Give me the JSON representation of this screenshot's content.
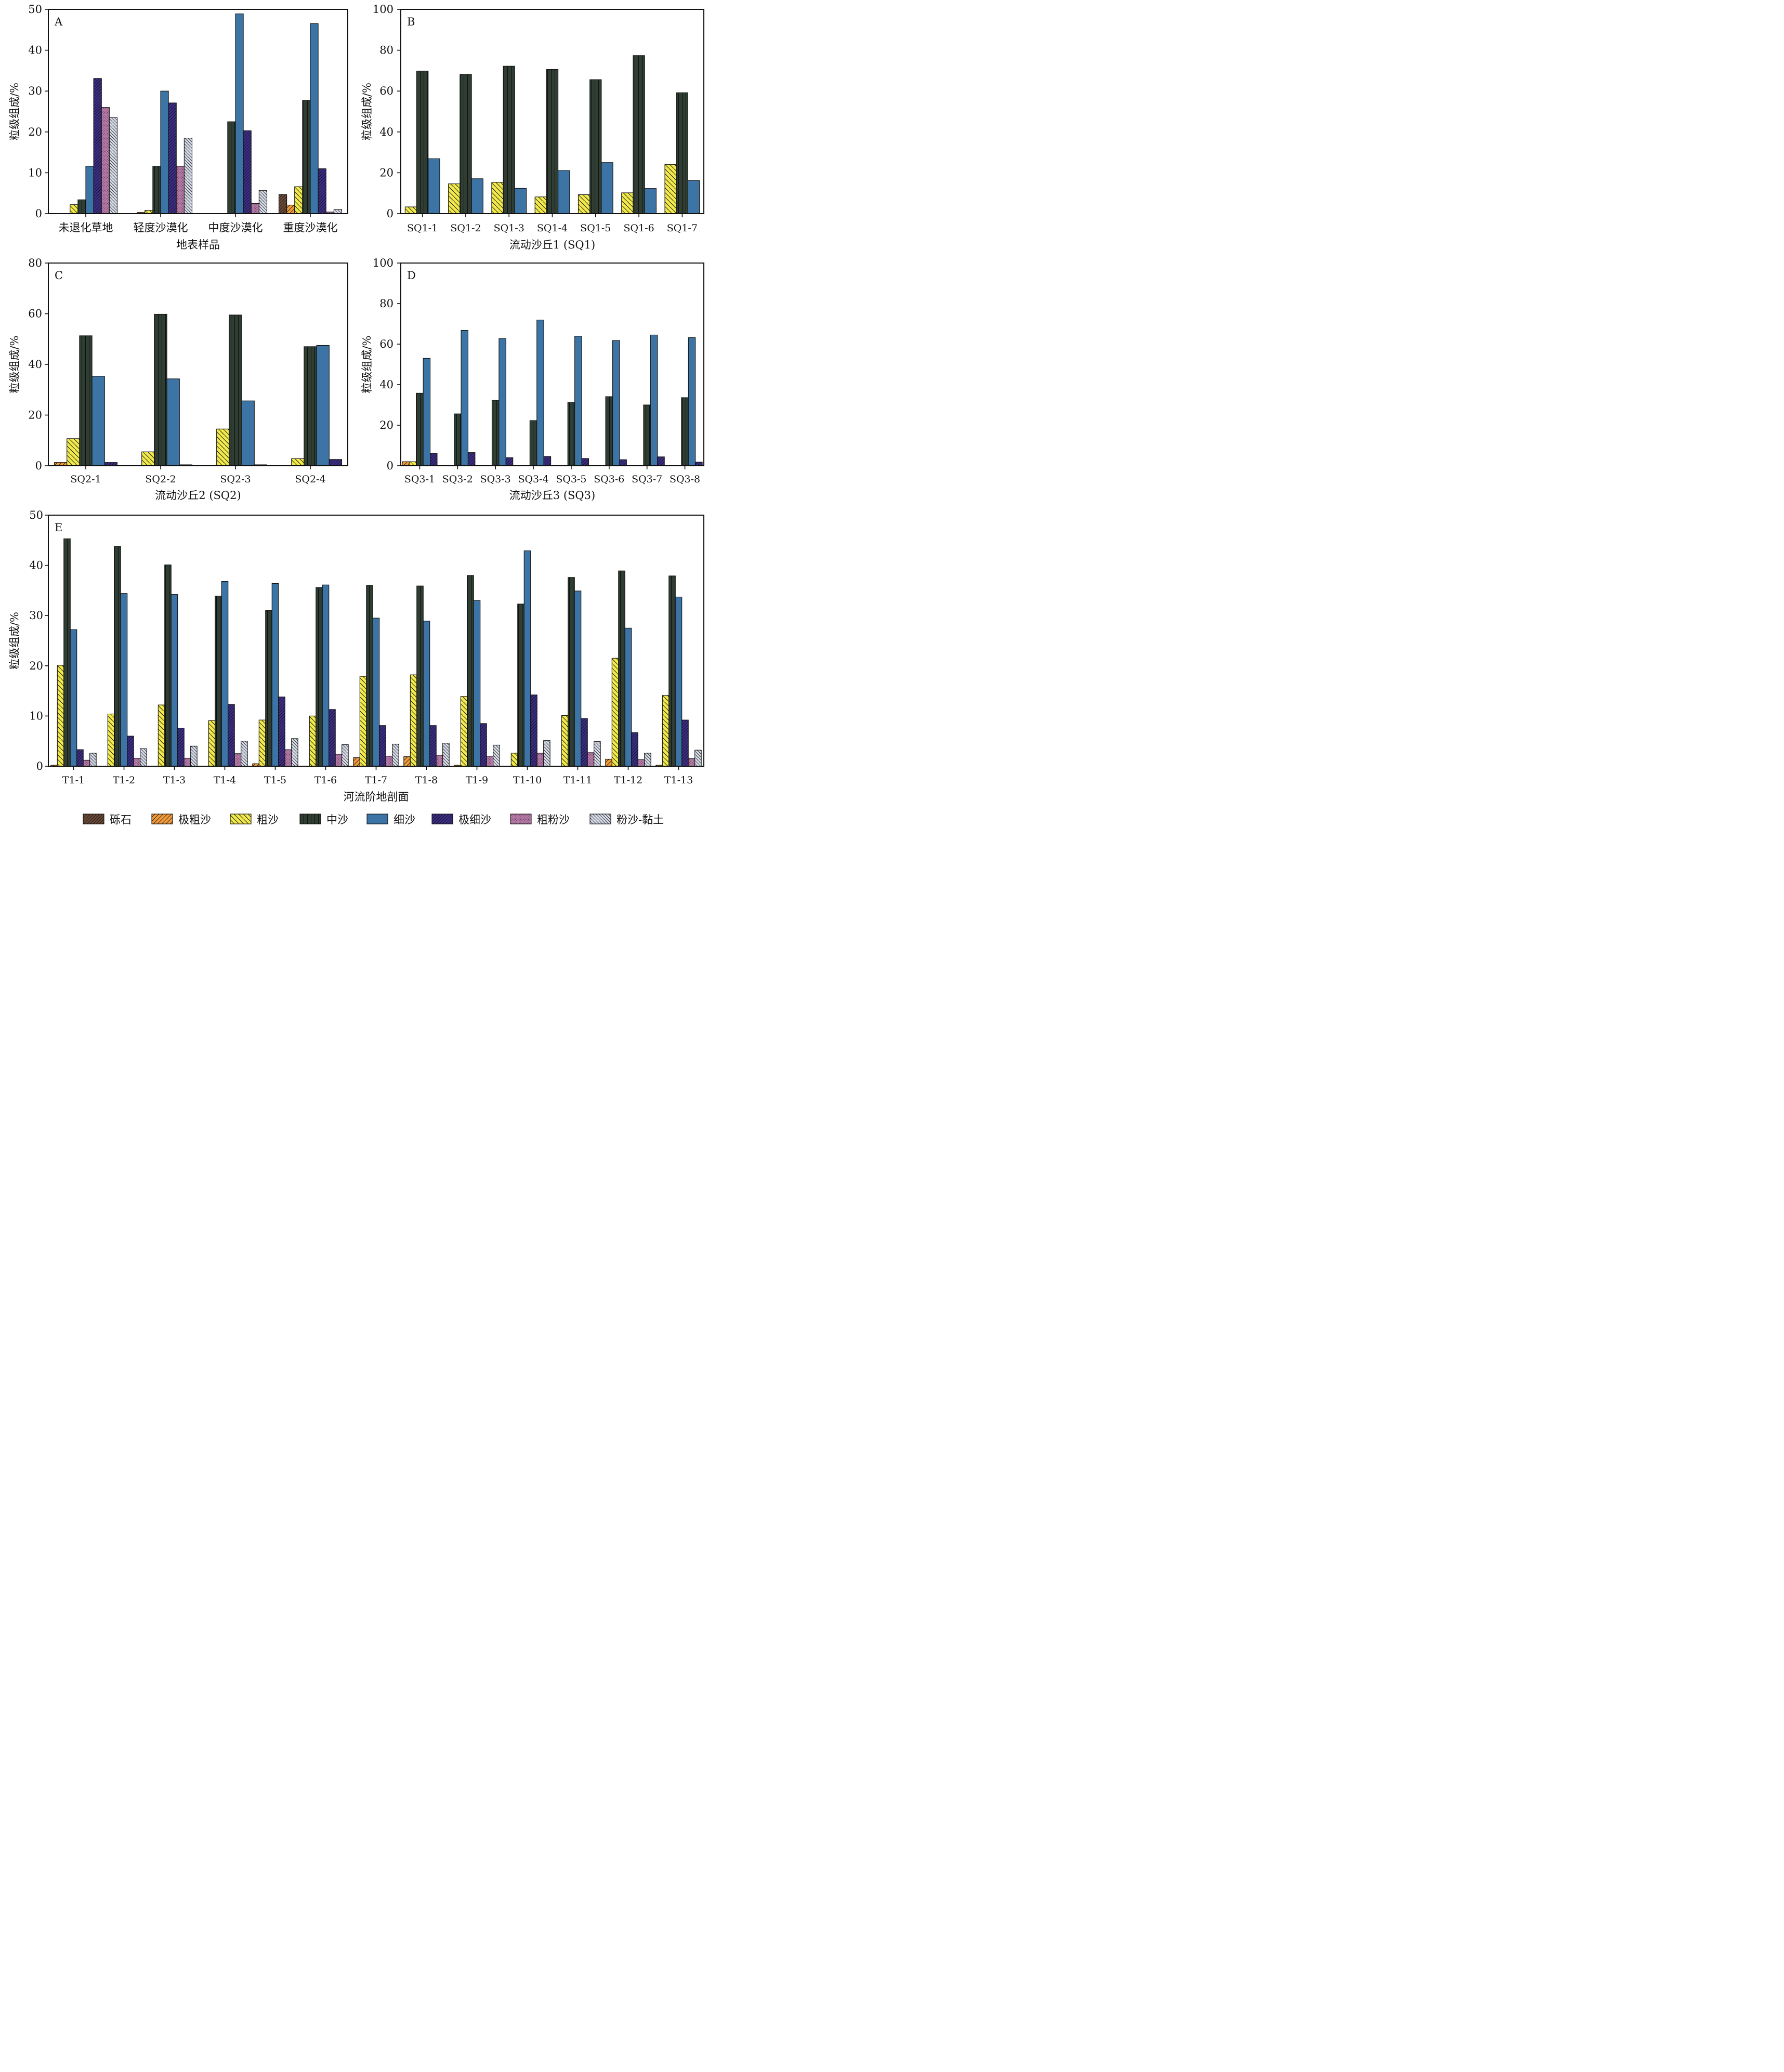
{
  "categories_legend": [
    "砾石",
    "极粗沙",
    "粗沙",
    "中沙",
    "细沙",
    "极细沙",
    "粗粉沙",
    "粉沙-黏土"
  ],
  "class_colors": [
    "#6b4a36",
    "#f29a3a",
    "#f2ea4a",
    "#2f3d33",
    "#3d74a6",
    "#3d2f80",
    "#b47aa6",
    "#d6dbe8"
  ],
  "chart_data": [
    {
      "panel": "A",
      "type": "bar",
      "ylabel": "粒级组成/%",
      "xlabel": "地表样品",
      "ylim": [
        0,
        50
      ],
      "yticks": [
        0,
        10,
        20,
        30,
        40,
        50
      ],
      "categories": [
        "未退化草地",
        "轻度沙漠化",
        "中度沙漠化",
        "重度沙漠化"
      ],
      "series": [
        {
          "name": "砾石",
          "values": [
            0,
            0,
            0,
            4.7
          ]
        },
        {
          "name": "极粗沙",
          "values": [
            0,
            0.3,
            0,
            2.1
          ]
        },
        {
          "name": "粗沙",
          "values": [
            2.2,
            0.8,
            0,
            6.6
          ]
        },
        {
          "name": "中沙",
          "values": [
            3.4,
            11.6,
            22.5,
            27.7
          ]
        },
        {
          "name": "细沙",
          "values": [
            11.6,
            30.0,
            48.9,
            46.5
          ]
        },
        {
          "name": "极细沙",
          "values": [
            33.1,
            27.1,
            20.3,
            11.0
          ]
        },
        {
          "name": "粗粉沙",
          "values": [
            26.0,
            11.6,
            2.5,
            0.4
          ]
        },
        {
          "name": "粉沙-黏土",
          "values": [
            23.5,
            18.5,
            5.7,
            1.0
          ]
        }
      ]
    },
    {
      "panel": "B",
      "type": "bar",
      "ylabel": "粒级组成/%",
      "xlabel": "流动沙丘1 (SQ1)",
      "ylim": [
        0,
        100
      ],
      "yticks": [
        0,
        20,
        40,
        60,
        80,
        100
      ],
      "categories": [
        "SQ1-1",
        "SQ1-2",
        "SQ1-3",
        "SQ1-4",
        "SQ1-5",
        "SQ1-6",
        "SQ1-7"
      ],
      "series": [
        {
          "name": "砾石",
          "values": [
            0,
            0,
            0,
            0,
            0,
            0,
            0
          ]
        },
        {
          "name": "极粗沙",
          "values": [
            0,
            0,
            0,
            0,
            0,
            0,
            0
          ]
        },
        {
          "name": "粗沙",
          "values": [
            3.3,
            14.6,
            15.3,
            8.2,
            9.3,
            10.2,
            24.1
          ]
        },
        {
          "name": "中沙",
          "values": [
            69.8,
            68.2,
            72.2,
            70.6,
            65.6,
            77.4,
            59.2
          ]
        },
        {
          "name": "细沙",
          "values": [
            26.9,
            17.1,
            12.4,
            21.1,
            25.0,
            12.3,
            16.2
          ]
        },
        {
          "name": "极细沙",
          "values": [
            0,
            0,
            0,
            0,
            0,
            0,
            0
          ]
        },
        {
          "name": "粗粉沙",
          "values": [
            0,
            0,
            0,
            0,
            0,
            0,
            0
          ]
        },
        {
          "name": "粉沙-黏土",
          "values": [
            0,
            0,
            0,
            0,
            0,
            0,
            0
          ]
        }
      ]
    },
    {
      "panel": "C",
      "type": "bar",
      "ylabel": "粒级组成/%",
      "xlabel": "流动沙丘2 (SQ2)",
      "ylim": [
        0,
        80
      ],
      "yticks": [
        0,
        20,
        40,
        60,
        80
      ],
      "categories": [
        "SQ2-1",
        "SQ2-2",
        "SQ2-3",
        "SQ2-4"
      ],
      "series": [
        {
          "name": "砾石",
          "values": [
            0,
            0,
            0,
            0
          ]
        },
        {
          "name": "极粗沙",
          "values": [
            1.3,
            0,
            0,
            0
          ]
        },
        {
          "name": "粗沙",
          "values": [
            10.7,
            5.5,
            14.5,
            2.8
          ]
        },
        {
          "name": "中沙",
          "values": [
            51.3,
            59.8,
            59.5,
            47.0
          ]
        },
        {
          "name": "细沙",
          "values": [
            35.3,
            34.3,
            25.6,
            47.5
          ]
        },
        {
          "name": "极细沙",
          "values": [
            1.3,
            0.4,
            0.4,
            2.5
          ]
        },
        {
          "name": "粗粉沙",
          "values": [
            0,
            0,
            0,
            0
          ]
        },
        {
          "name": "粉沙-黏土",
          "values": [
            0,
            0,
            0,
            0
          ]
        }
      ]
    },
    {
      "panel": "D",
      "type": "bar",
      "ylabel": "粒级组成/%",
      "xlabel": "流动沙丘3 (SQ3)",
      "ylim": [
        0,
        100
      ],
      "yticks": [
        0,
        20,
        40,
        60,
        80,
        100
      ],
      "categories": [
        "SQ3-1",
        "SQ3-2",
        "SQ3-3",
        "SQ3-4",
        "SQ3-5",
        "SQ3-6",
        "SQ3-7",
        "SQ3-8"
      ],
      "series": [
        {
          "name": "砾石",
          "values": [
            0,
            0,
            0,
            0,
            0,
            0,
            0,
            0
          ]
        },
        {
          "name": "极粗沙",
          "values": [
            2.0,
            0,
            0,
            0,
            0,
            0,
            0,
            0
          ]
        },
        {
          "name": "粗沙",
          "values": [
            2.0,
            0,
            0,
            0,
            0,
            0,
            0,
            0
          ]
        },
        {
          "name": "中沙",
          "values": [
            35.8,
            25.6,
            32.3,
            22.3,
            31.2,
            34.1,
            30.0,
            33.6
          ]
        },
        {
          "name": "细沙",
          "values": [
            53.0,
            66.8,
            62.7,
            71.9,
            63.9,
            61.8,
            64.5,
            63.2
          ]
        },
        {
          "name": "极细沙",
          "values": [
            6.1,
            6.5,
            4.0,
            4.6,
            3.6,
            3.0,
            4.4,
            1.8
          ]
        },
        {
          "name": "粗粉沙",
          "values": [
            0,
            0,
            0,
            0,
            0,
            0,
            0,
            0
          ]
        },
        {
          "name": "粉沙-黏土",
          "values": [
            0,
            0,
            0,
            0,
            0,
            0,
            0,
            0
          ]
        }
      ]
    },
    {
      "panel": "E",
      "type": "bar",
      "ylabel": "粒级组成/%",
      "xlabel": "河流阶地剖面",
      "ylim": [
        0,
        50
      ],
      "yticks": [
        0,
        10,
        20,
        30,
        40,
        50
      ],
      "categories": [
        "T1-1",
        "T1-2",
        "T1-3",
        "T1-4",
        "T1-5",
        "T1-6",
        "T1-7",
        "T1-8",
        "T1-9",
        "T1-10",
        "T1-11",
        "T1-12",
        "T1-13"
      ],
      "series": [
        {
          "name": "砾石",
          "values": [
            0,
            0,
            0,
            0,
            0,
            0,
            0,
            0,
            0,
            0,
            0,
            0,
            0
          ]
        },
        {
          "name": "极粗沙",
          "values": [
            0.2,
            0,
            0,
            0,
            0.5,
            0,
            1.7,
            1.9,
            0.2,
            0,
            0,
            1.4,
            0.2
          ]
        },
        {
          "name": "粗沙",
          "values": [
            20.1,
            10.4,
            12.2,
            9.1,
            9.2,
            10.0,
            17.9,
            18.2,
            13.9,
            2.6,
            10.1,
            21.5,
            14.1
          ]
        },
        {
          "name": "中沙",
          "values": [
            45.3,
            43.8,
            40.1,
            33.9,
            31.0,
            35.6,
            36.0,
            35.9,
            38.0,
            32.3,
            37.6,
            38.9,
            37.9
          ]
        },
        {
          "name": "细沙",
          "values": [
            27.2,
            34.4,
            34.2,
            36.8,
            36.4,
            36.1,
            29.5,
            28.9,
            33.0,
            42.9,
            34.9,
            27.5,
            33.7
          ]
        },
        {
          "name": "极细沙",
          "values": [
            3.3,
            6.0,
            7.6,
            12.3,
            13.8,
            11.3,
            8.1,
            8.1,
            8.5,
            14.2,
            9.5,
            6.7,
            9.2
          ]
        },
        {
          "name": "粗粉沙",
          "values": [
            1.2,
            1.6,
            1.6,
            2.5,
            3.3,
            2.4,
            2.0,
            2.2,
            2.0,
            2.6,
            2.7,
            1.3,
            1.5
          ]
        },
        {
          "name": "粉沙-黏土",
          "values": [
            2.6,
            3.5,
            4.0,
            5.0,
            5.5,
            4.3,
            4.4,
            4.6,
            4.2,
            5.1,
            4.9,
            2.6,
            3.2
          ]
        }
      ]
    }
  ]
}
